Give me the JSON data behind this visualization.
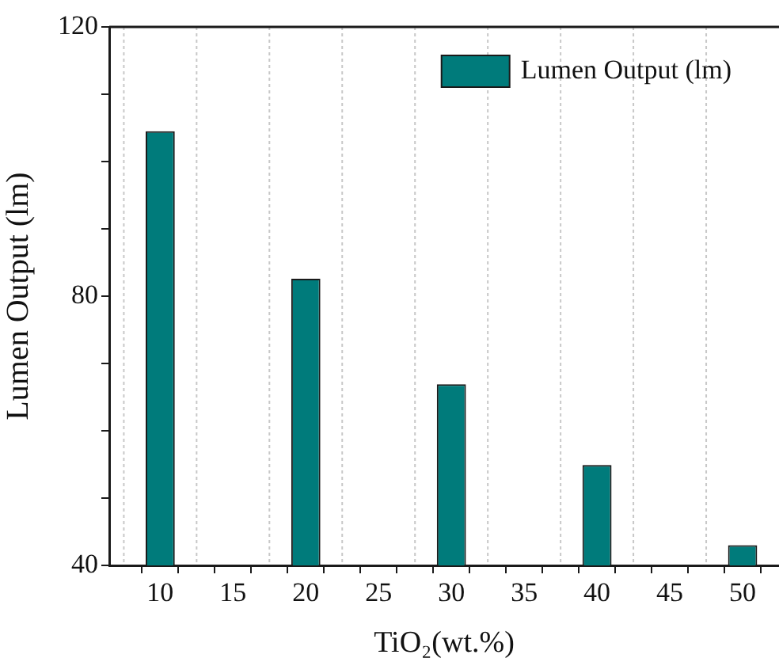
{
  "chart_data": {
    "type": "bar",
    "xlabel": "TiO₂(wt.%)",
    "ylabel": "Lumen Output (lm)",
    "x": [
      10,
      20,
      30,
      40,
      50
    ],
    "series": [
      {
        "name": "Lumen Output (lm)",
        "color": "#007b7b",
        "values": [
          104.5,
          82.6,
          66.9,
          54.9,
          43.0
        ]
      }
    ],
    "xlim": [
      6.5,
      52.5
    ],
    "xticks": [
      {
        "value": 7.5,
        "label": null
      },
      10,
      {
        "value": 12.5,
        "label": null
      },
      15,
      {
        "value": 17.5,
        "label": null
      },
      20,
      {
        "value": 22.5,
        "label": null
      },
      25,
      {
        "value": 27.5,
        "label": null
      },
      30,
      {
        "value": 32.5,
        "label": null
      },
      35,
      {
        "value": 37.5,
        "label": null
      },
      40,
      {
        "value": 42.5,
        "label": null
      },
      45,
      {
        "value": 47.5,
        "label": null
      },
      50
    ],
    "ylim": [
      40,
      120
    ],
    "yticks": [
      40,
      {
        "value": 50,
        "label": null
      },
      {
        "value": 60,
        "label": null
      },
      {
        "value": 70,
        "label": null
      },
      80,
      {
        "value": 90,
        "label": null
      },
      {
        "value": 100,
        "label": null
      },
      {
        "value": 110,
        "label": null
      },
      120
    ],
    "grid": "x",
    "legend": "top right"
  }
}
